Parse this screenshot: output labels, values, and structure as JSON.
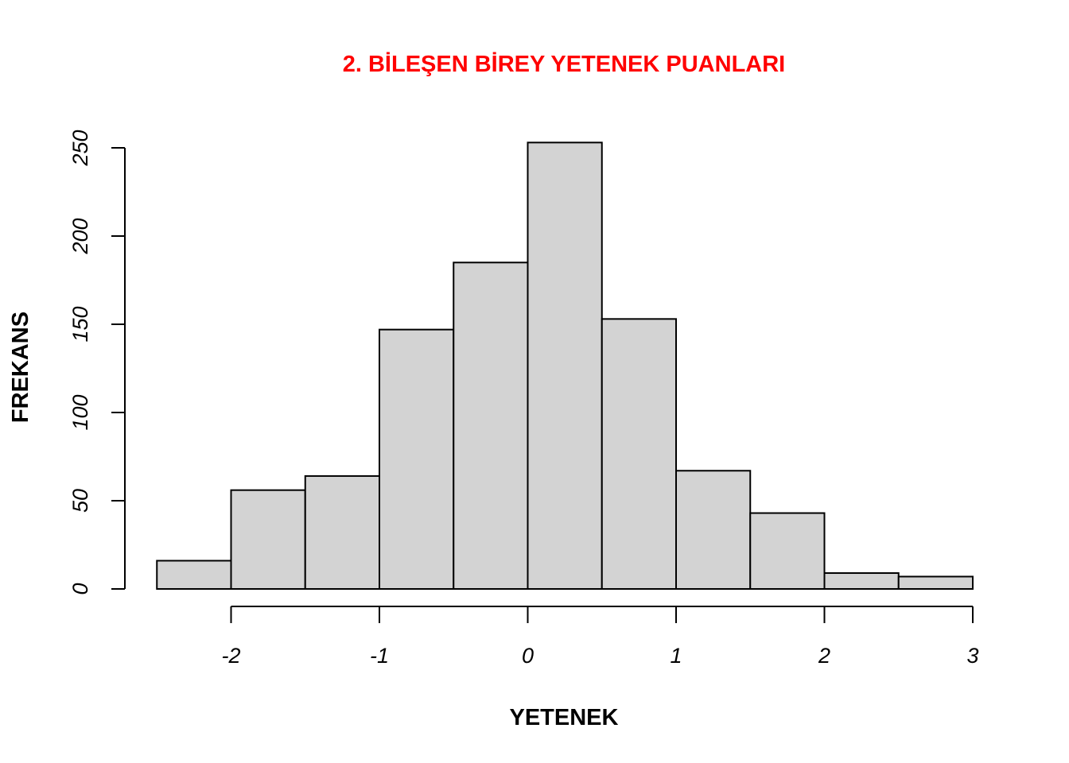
{
  "chart_data": {
    "type": "bar",
    "title": "2. BİLEŞEN BİREY YETENEK PUANLARI",
    "xlabel": "YETENEK",
    "ylabel": "FREKANS",
    "bin_edges": [
      -2.5,
      -2,
      -1.5,
      -1,
      -0.5,
      0,
      0.5,
      1,
      1.5,
      2,
      2.5,
      3
    ],
    "values": [
      16,
      56,
      64,
      147,
      185,
      253,
      153,
      67,
      43,
      9,
      7
    ],
    "xlim": [
      -3.7,
      3
    ],
    "ylim": [
      0,
      250
    ],
    "x_ticks": [
      -2,
      -1,
      0,
      1,
      2,
      3
    ],
    "x_tick_labels": [
      "-2",
      "-1",
      "0",
      "1",
      "2",
      "3"
    ],
    "y_ticks": [
      0,
      50,
      100,
      150,
      200,
      250
    ],
    "y_tick_labels": [
      "0",
      "50",
      "100",
      "150",
      "200",
      "250"
    ],
    "grid": false,
    "colors": {
      "bar_fill": "#d3d3d3",
      "bar_stroke": "#000000",
      "title": "#ff0000"
    }
  }
}
